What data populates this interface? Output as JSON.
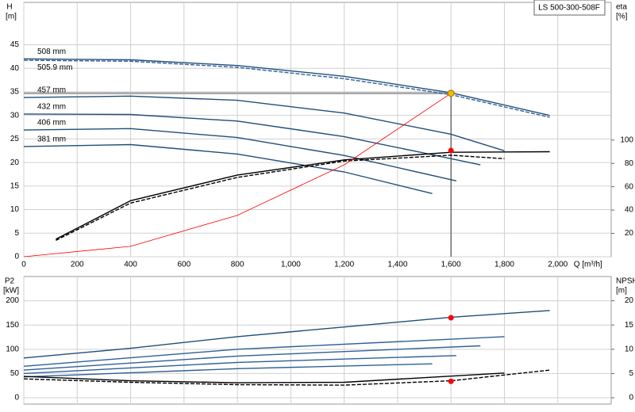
{
  "chart_data": [
    {
      "type": "line",
      "title": "LS 500-300-508F",
      "ylabel": "H",
      "yunit": "[m]",
      "y2label": "eta",
      "y2unit": "[%]",
      "xlabel": "Q [m³/h]",
      "xlim": [
        0,
        2200
      ],
      "ylim": [
        0,
        54
      ],
      "y2lim": [
        0,
        218
      ],
      "xticks": [
        0,
        200,
        400,
        600,
        800,
        {
          "value": 1000,
          "label": "1,000"
        },
        {
          "value": 1200,
          "label": "1,200"
        },
        {
          "value": 1400,
          "label": "1,400"
        },
        {
          "value": 1600,
          "label": "1,600"
        },
        {
          "value": 1800,
          "label": "1,800"
        },
        {
          "value": 2000,
          "label": "2,000"
        }
      ],
      "yticks": [
        0,
        5,
        10,
        15,
        20,
        25,
        30,
        35,
        40,
        45
      ],
      "y2ticks": [
        20,
        40,
        60,
        80,
        100
      ],
      "show_xtick_labels": true,
      "grid": true,
      "series": [
        {
          "name": "508 mm",
          "color": "#1f4e79",
          "x": [
            0,
            400,
            800,
            1200,
            1600,
            1970
          ],
          "values": [
            42,
            41.8,
            40.6,
            38.3,
            34.8,
            30
          ]
        },
        {
          "name": "505.9 mm",
          "color": "#2e5f99",
          "dash": true,
          "x": [
            0,
            400,
            800,
            1200,
            1600,
            1970
          ],
          "values": [
            41.7,
            41.5,
            40.2,
            37.8,
            34.4,
            29.6
          ]
        },
        {
          "name": "457 mm",
          "color": "#1f4e79",
          "x": [
            0,
            400,
            800,
            1200,
            1600,
            1800
          ],
          "values": [
            33.8,
            34.1,
            33.2,
            30.5,
            26,
            22.5
          ]
        },
        {
          "name": "432 mm",
          "color": "#1f4e79",
          "x": [
            0,
            400,
            800,
            1200,
            1500,
            1710
          ],
          "values": [
            30.3,
            30.2,
            28.8,
            25.5,
            22,
            19.5
          ]
        },
        {
          "name": "406 mm",
          "color": "#1f4e79",
          "x": [
            0,
            400,
            800,
            1200,
            1620
          ],
          "values": [
            26.9,
            27.2,
            25.3,
            21.5,
            16.1
          ]
        },
        {
          "name": "381 mm",
          "color": "#1f4e79",
          "x": [
            0,
            400,
            800,
            1200,
            1530
          ],
          "values": [
            23.4,
            23.8,
            21.8,
            18,
            13.4
          ]
        },
        {
          "color": "#000000",
          "axis": "y2",
          "x": [
            120,
            400,
            800,
            1200,
            1600,
            1970
          ],
          "values": [
            15,
            48,
            70,
            83,
            89.5,
            90
          ]
        },
        {
          "color": "#000000",
          "axis": "y2",
          "dash": true,
          "x": [
            120,
            400,
            800,
            1200,
            1600,
            1800
          ],
          "values": [
            14,
            46,
            68,
            82,
            87,
            84
          ]
        },
        {
          "color": "#ff0000",
          "x": [
            0,
            400,
            800,
            1200,
            1600
          ],
          "values": [
            0,
            2.2,
            8.8,
            19.5,
            34.7
          ]
        }
      ],
      "duty_point": {
        "x": 1600,
        "y": 34.7,
        "color": "#f5b800"
      },
      "points": [
        {
          "x": 1600,
          "y": 91,
          "axis": "y2",
          "color": "#ff0000"
        }
      ]
    },
    {
      "type": "line",
      "ylabel": "P2",
      "yunit": "[kW]",
      "y2label": "NPSH",
      "y2unit": "[m]",
      "xlim": [
        0,
        2200
      ],
      "ylim": [
        -13,
        250
      ],
      "y2lim": [
        -1.3,
        25
      ],
      "xticks": [
        0,
        200,
        400,
        600,
        800,
        1000,
        1200,
        1400,
        1600,
        1800,
        2000
      ],
      "yticks": [
        0,
        50,
        100,
        150,
        200
      ],
      "y2ticks": [
        0,
        5,
        10,
        15,
        20
      ],
      "show_xtick_labels": false,
      "grid": true,
      "series": [
        {
          "color": "#1f4e79",
          "x": [
            0,
            400,
            800,
            1200,
            1600,
            1970
          ],
          "values": [
            82,
            102,
            126,
            146,
            166,
            180
          ]
        },
        {
          "color": "#2e5f99",
          "x": [
            0,
            800,
            1800
          ],
          "values": [
            65,
            100,
            126
          ]
        },
        {
          "color": "#2e5f99",
          "x": [
            0,
            800,
            1710
          ],
          "values": [
            57,
            86,
            107
          ]
        },
        {
          "color": "#2e5f99",
          "x": [
            0,
            800,
            1620
          ],
          "values": [
            50,
            73,
            87
          ]
        },
        {
          "color": "#2e5f99",
          "x": [
            0,
            800,
            1530
          ],
          "values": [
            43,
            60,
            70
          ]
        },
        {
          "color": "#000000",
          "axis": "y2",
          "dash": true,
          "x": [
            0,
            400,
            800,
            1200,
            1600,
            1970
          ],
          "values": [
            3.9,
            3.2,
            2.7,
            2.6,
            3.5,
            5.7
          ]
        },
        {
          "color": "#000000",
          "axis": "y2",
          "x": [
            0,
            400,
            800,
            1200,
            1800
          ],
          "values": [
            4.4,
            3.5,
            3.1,
            3.2,
            5.1
          ]
        }
      ],
      "points": [
        {
          "x": 1600,
          "y": 165,
          "color": "#ff0000"
        },
        {
          "x": 1600,
          "y": 3.4,
          "axis": "y2",
          "color": "#ff0000"
        }
      ]
    }
  ]
}
